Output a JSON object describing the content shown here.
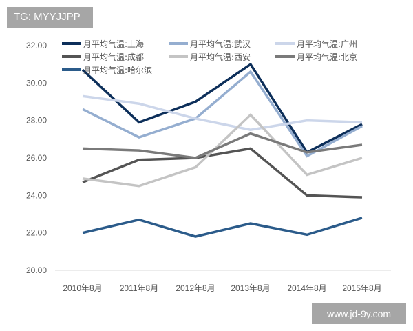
{
  "watermarks": {
    "top_left": "TG: MYYJJPP",
    "bottom_right": "www.jd-9y.com"
  },
  "chart_data": {
    "type": "line",
    "title": "",
    "xlabel": "",
    "ylabel": "",
    "ylim": [
      20,
      32
    ],
    "yticks": [
      "20.00",
      "22.00",
      "24.00",
      "26.00",
      "28.00",
      "30.00",
      "32.00"
    ],
    "categories": [
      "2010年8月",
      "2011年8月",
      "2012年8月",
      "2013年8月",
      "2014年8月",
      "2015年8月"
    ],
    "grid": false,
    "legend_position": "top",
    "series": [
      {
        "name": "月平均气温:上海",
        "color": "#0d2f5a",
        "values": [
          30.7,
          27.9,
          29.0,
          31.0,
          26.3,
          27.8
        ]
      },
      {
        "name": "月平均气温:武汉",
        "color": "#95aed0",
        "values": [
          28.6,
          27.1,
          28.1,
          30.6,
          26.1,
          27.7
        ]
      },
      {
        "name": "月平均气温:广州",
        "color": "#ccd6ea",
        "values": [
          29.3,
          28.9,
          28.1,
          27.5,
          28.0,
          27.9
        ]
      },
      {
        "name": "月平均气温:成都",
        "color": "#545454",
        "values": [
          24.7,
          25.9,
          26.0,
          26.5,
          24.0,
          23.9
        ]
      },
      {
        "name": "月平均气温:西安",
        "color": "#c4c4c4",
        "values": [
          24.9,
          24.5,
          25.5,
          28.3,
          25.1,
          26.0
        ]
      },
      {
        "name": "月平均气温:北京",
        "color": "#7a7a7a",
        "values": [
          26.5,
          26.4,
          26.0,
          27.3,
          26.3,
          26.7
        ]
      },
      {
        "name": "月平均气温:哈尔滨",
        "color": "#2b5b8a",
        "values": [
          22.0,
          22.7,
          21.8,
          22.5,
          21.9,
          22.8
        ]
      }
    ]
  }
}
